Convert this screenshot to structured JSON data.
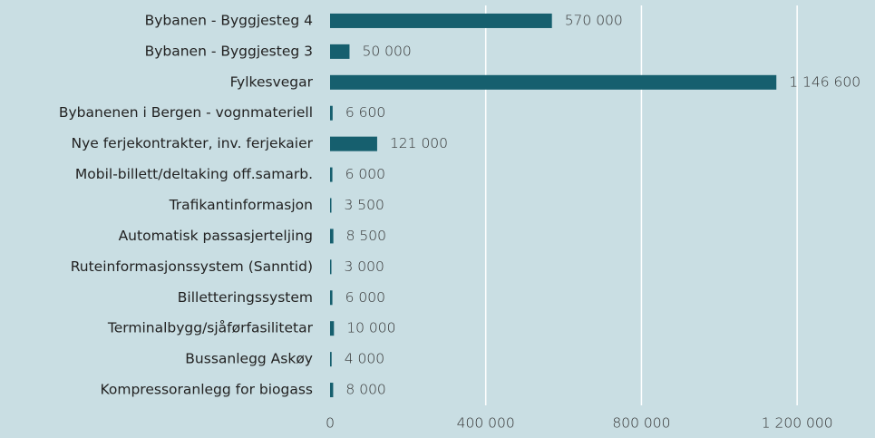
{
  "chart_data": {
    "type": "barh",
    "categories": [
      "Bybanen - Byggjesteg 4",
      "Bybanen - Byggjesteg 3",
      "Fylkesvegar",
      "Bybanenen i Bergen - vognmateriell",
      "Nye ferjekontrakter, inv. ferjekaier",
      "Mobil-billett/deltaking off.samarb.",
      "Trafikantinformasjon",
      "Automatisk passasjerteljing",
      "Ruteinformasjonssystem (Sanntid)",
      "Billetteringssystem",
      "Terminalbygg/sjåførfasilitetar",
      "Bussanlegg Askøy",
      "Kompressoranlegg for biogass"
    ],
    "values": [
      570000,
      50000,
      1146600,
      6600,
      121000,
      6000,
      3500,
      8500,
      3000,
      6000,
      10000,
      4000,
      8000
    ],
    "value_labels": [
      "570 000",
      "50 000",
      "1 146 600",
      "6 600",
      "121 000",
      "6 000",
      "3 500",
      "8 500",
      "3 000",
      "6 000",
      "10 000",
      "4 000",
      "8 000"
    ],
    "color": "#165f6e",
    "xlim": [
      0,
      1400000
    ],
    "xticks": [
      0,
      {
        "value": 400000,
        "label": "400 000"
      },
      {
        "value": 800000,
        "label": "800 000"
      },
      {
        "value": 1200000,
        "label": "1 200 000"
      }
    ],
    "grid": true
  }
}
